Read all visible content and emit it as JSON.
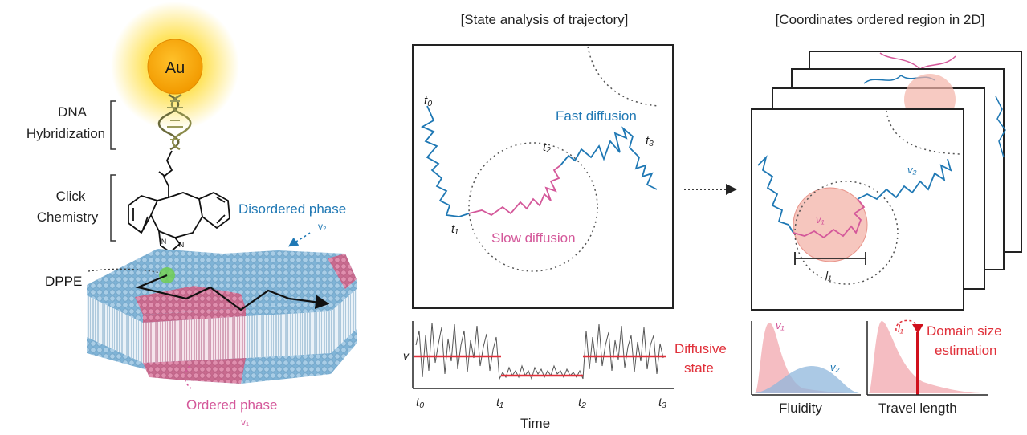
{
  "left_panel": {
    "nanoparticle_label": "Au",
    "dna_label_line1": "DNA",
    "dna_label_line2": "Hybridization",
    "click_label_line1": "Click",
    "click_label_line2": "Chemistry",
    "n1": "N",
    "n2": "N",
    "n3": "N",
    "dppe_label": "DPPE",
    "disordered_label": "Disordered phase",
    "disordered_symbol": "v₂",
    "ordered_label": "Ordered phase",
    "ordered_symbol": "v₁"
  },
  "middle_panel": {
    "title": "[State analysis of trajectory]",
    "fast_label": "Fast diffusion",
    "slow_label": "Slow diffusion",
    "t0": "t₀",
    "t1": "t₁",
    "t2": "t₂",
    "t3": "t₃",
    "v_axis_label": "v",
    "diffusive_line1": "Diffusive",
    "diffusive_line2": "state",
    "time_label": "Time",
    "tick_t0": "t₀",
    "tick_t1": "t₁",
    "tick_t2": "t₂",
    "tick_t3": "t₃"
  },
  "right_panel": {
    "title": "[Coordinates ordered region in 2D]",
    "v1": "v₁",
    "v2": "v₂",
    "l1": "l₁",
    "fluidity_label": "Fluidity",
    "fluidity_v1": "v₁",
    "fluidity_v2": "v₂",
    "travel_label": "Travel length",
    "travel_l": "l₁",
    "domain_line1": "Domain size",
    "domain_line2": "estimation"
  },
  "colors": {
    "blue": "#1f78b4",
    "pink": "#d4589a",
    "red": "#e0303a",
    "gold": "#f5a300"
  }
}
